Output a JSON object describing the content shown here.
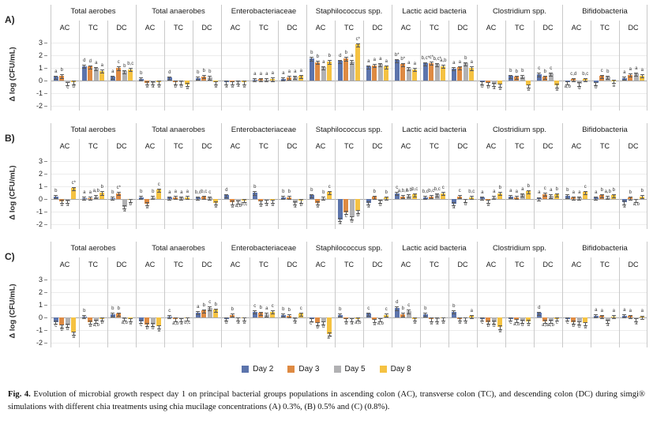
{
  "chart_data": {
    "type": "bar",
    "title": "",
    "ylabel": "Δ log (CFU/mL)",
    "yticks": [
      3,
      2,
      1,
      0,
      -1,
      -2
    ],
    "ylim": [
      -2.4,
      3.4
    ],
    "grid": true,
    "legend_position": "bottom",
    "groups": [
      "Total aerobes",
      "Total anaerobes",
      "Enterobacteriaceae",
      "Staphilococcus spp.",
      "Lactic acid bacteria",
      "Clostridium spp.",
      "Bifidobacteria"
    ],
    "regions": [
      "AC",
      "TC",
      "DC"
    ],
    "series": [
      "Day 2",
      "Day 3",
      "Day 5",
      "Day 8"
    ],
    "colors": [
      "#5C74AC",
      "#DE8A42",
      "#B1B1B3",
      "#F5C242"
    ],
    "error_bar_approx": 0.1,
    "panels": [
      {
        "label": "A)",
        "values": [
          [
            [
              0.3,
              0.38,
              -0.2,
              -0.12
            ],
            [
              1.15,
              1.1,
              0.97,
              0.78
            ],
            [
              0.3,
              1.0,
              0.72,
              0.9
            ]
          ],
          [
            [
              0.15,
              -0.18,
              -0.18,
              -0.12
            ],
            [
              0.22,
              -0.12,
              -0.12,
              -0.3
            ],
            [
              0.2,
              0.32,
              0.25,
              -0.15
            ]
          ],
          [
            [
              -0.12,
              -0.15,
              -0.1,
              -0.12
            ],
            [
              0.08,
              0.1,
              0.08,
              0.12
            ],
            [
              0.15,
              0.25,
              0.3,
              0.35
            ]
          ],
          [
            [
              1.75,
              1.45,
              1.05,
              1.5
            ],
            [
              1.55,
              1.75,
              1.5,
              2.85
            ],
            [
              1.1,
              1.2,
              1.3,
              1.1
            ]
          ],
          [
            [
              1.6,
              1.3,
              0.95,
              0.9
            ],
            [
              1.35,
              1.4,
              1.3,
              1.15
            ],
            [
              0.95,
              1.05,
              1.35,
              1.0
            ]
          ],
          [
            [
              -0.15,
              -0.2,
              -0.3,
              -0.32
            ],
            [
              0.35,
              0.3,
              0.32,
              -0.4
            ],
            [
              0.5,
              0.3,
              0.55,
              -0.38
            ]
          ],
          [
            [
              -0.15,
              0.1,
              -0.25,
              0.1
            ],
            [
              -0.2,
              0.35,
              0.3,
              -0.05
            ],
            [
              0.2,
              0.45,
              0.55,
              0.4
            ]
          ]
        ],
        "letters": [
          [
            [
              "a",
              "b",
              "c",
              "d"
            ],
            [
              "d",
              "d",
              "a",
              "a"
            ],
            [
              "a",
              "c",
              "b",
              "b,c"
            ]
          ],
          [
            [
              "b",
              "a",
              "a",
              "a"
            ],
            [
              "d",
              "b",
              "b",
              "a"
            ],
            [
              "b",
              "b",
              "b",
              "a"
            ]
          ],
          [
            [
              "a",
              "a",
              "a",
              "a"
            ],
            [
              "a",
              "a",
              "a",
              "a"
            ],
            [
              "a",
              "a",
              "a",
              "a"
            ]
          ],
          [
            [
              "b",
              "b",
              "a",
              "b"
            ],
            [
              "d",
              "b",
              "a",
              "c*"
            ],
            [
              "a",
              "a",
              "a",
              "a"
            ]
          ],
          [
            [
              "b*",
              "b*",
              "a",
              "a"
            ],
            [
              "b,c*",
              "c*",
              "b,c*",
              "a,b"
            ],
            [
              "a",
              "a",
              "b",
              "a"
            ]
          ],
          [
            [
              "b",
              "b",
              "a",
              "a"
            ],
            [
              "b",
              "b",
              "b",
              "a"
            ],
            [
              "c",
              "b",
              "c",
              "a"
            ]
          ],
          [
            [
              "a,b",
              "c,d",
              "d",
              "b,c"
            ],
            [
              "b",
              "c",
              "b",
              "a"
            ],
            [
              "a",
              "a",
              "a",
              "a"
            ]
          ]
        ]
      },
      {
        "label": "B)",
        "values": [
          [
            [
              0.2,
              -0.18,
              -0.18,
              0.85
            ],
            [
              0.07,
              0.07,
              0.2,
              0.5
            ],
            [
              0.07,
              0.45,
              -0.6,
              -0.07
            ]
          ],
          [
            [
              0.15,
              -0.35,
              0.15,
              0.72
            ],
            [
              0.1,
              0.15,
              0.1,
              0.15
            ],
            [
              0.1,
              0.18,
              0.1,
              -0.3
            ]
          ],
          [
            [
              0.3,
              -0.25,
              -0.2,
              -0.1
            ],
            [
              0.5,
              -0.2,
              -0.15,
              -0.15
            ],
            [
              0.15,
              0.15,
              -0.3,
              -0.12
            ]
          ],
          [
            [
              0.3,
              -0.3,
              0.07,
              0.55
            ],
            [
              -1.6,
              -1.05,
              -1.45,
              -0.95
            ],
            [
              -0.3,
              0.18,
              -0.18,
              0.1
            ]
          ],
          [
            [
              0.45,
              0.2,
              0.28,
              0.35
            ],
            [
              0.15,
              0.2,
              0.35,
              0.45
            ],
            [
              -0.35,
              0.2,
              -0.07,
              0.15
            ]
          ],
          [
            [
              0.1,
              -0.15,
              0.15,
              0.45
            ],
            [
              0.2,
              0.15,
              0.35,
              0.6
            ],
            [
              0.05,
              0.4,
              0.25,
              0.35
            ]
          ],
          [
            [
              0.25,
              0.1,
              0.1,
              0.55
            ],
            [
              0.1,
              0.3,
              0.15,
              0.3
            ],
            [
              -0.25,
              0.1,
              -0.07,
              0.2
            ]
          ]
        ],
        "letters": [
          [
            [
              "b",
              "a",
              "a",
              "c*"
            ],
            [
              "a",
              "a",
              "a,b",
              "b"
            ],
            [
              "b",
              "c*",
              "a",
              "b"
            ]
          ],
          [
            [
              "b",
              "a",
              "b",
              "c"
            ],
            [
              "a",
              "a",
              "a",
              "a"
            ],
            [
              "b,c",
              "b,c",
              "c",
              "a"
            ]
          ],
          [
            [
              "d",
              "a",
              "a,b",
              "b,c"
            ],
            [
              "b",
              "a",
              "a",
              "a"
            ],
            [
              "b",
              "b",
              "a",
              "b"
            ]
          ],
          [
            [
              "b",
              "a",
              "b",
              "c"
            ],
            [
              "a",
              "c",
              "b",
              "d"
            ],
            [
              "a",
              "b",
              "b",
              "b"
            ]
          ],
          [
            [
              "c",
              "a,b,c",
              "a,b",
              "b,c"
            ],
            [
              "b,c",
              "b,c",
              "b,c",
              "c"
            ],
            [
              "a",
              "c",
              "b",
              "b,c"
            ]
          ],
          [
            [
              "a",
              "a",
              "a",
              "b"
            ],
            [
              "a",
              "a",
              "a",
              "b"
            ],
            [
              "a",
              "c",
              "a",
              "b"
            ]
          ],
          [
            [
              "b",
              "a",
              "a",
              "c"
            ],
            [
              "a",
              "b",
              "a,b",
              "b"
            ],
            [
              "a",
              "b",
              "a,b",
              "b"
            ]
          ]
        ]
      },
      {
        "label": "C)",
        "values": [
          [
            [
              -0.35,
              -0.65,
              -0.6,
              -1.2
            ],
            [
              0.07,
              -0.35,
              -0.3,
              -0.1
            ],
            [
              0.25,
              0.3,
              -0.1,
              -0.15
            ]
          ],
          [
            [
              -0.3,
              -0.55,
              -0.55,
              -0.7
            ],
            [
              0.07,
              -0.12,
              -0.15,
              -0.07
            ],
            [
              0.4,
              0.55,
              0.75,
              0.6
            ]
          ],
          [
            [
              -0.1,
              0.2,
              -0.07,
              -0.07
            ],
            [
              0.45,
              0.35,
              0.25,
              0.45
            ],
            [
              0.2,
              0.15,
              -0.1,
              0.3
            ]
          ],
          [
            [
              -0.15,
              -0.45,
              -0.4,
              -1.3
            ],
            [
              0.2,
              -0.15,
              -0.15,
              -0.1
            ],
            [
              0.3,
              -0.2,
              -0.15,
              0.2
            ]
          ],
          [
            [
              0.75,
              0.25,
              0.5,
              -0.1
            ],
            [
              0.25,
              -0.12,
              -0.12,
              -0.07
            ],
            [
              0.45,
              -0.1,
              -0.07,
              0.1
            ]
          ],
          [
            [
              -0.1,
              -0.35,
              -0.35,
              -0.75
            ],
            [
              -0.1,
              -0.2,
              -0.3,
              -0.3
            ],
            [
              0.35,
              -0.3,
              -0.3,
              -0.1
            ]
          ],
          [
            [
              -0.1,
              -0.35,
              -0.4,
              -0.45
            ],
            [
              0.15,
              0.1,
              -0.3,
              0.07
            ],
            [
              0.15,
              0.1,
              -0.15,
              0.05
            ]
          ]
        ],
        "letters": [
          [
            [
              "c",
              "b",
              "b",
              "a"
            ],
            [
              "b",
              "a",
              "a,b",
              "b"
            ],
            [
              "b",
              "b",
              "a,b",
              "a"
            ]
          ],
          [
            [
              "c",
              "b",
              "b",
              "a"
            ],
            [
              "c",
              "a,b",
              "a",
              "b,c"
            ],
            [
              "a",
              "b",
              "c",
              "b"
            ]
          ],
          [
            [
              "b",
              "b",
              "a",
              "a"
            ],
            [
              "c",
              "b",
              "a",
              "c"
            ],
            [
              "b",
              "b",
              "a",
              "c"
            ]
          ],
          [
            [
              "c*",
              "b",
              "b",
              "a*"
            ],
            [
              "b",
              "a",
              "a",
              "a,b"
            ],
            [
              "c",
              "a",
              "a,b",
              "c"
            ]
          ],
          [
            [
              "d",
              "b",
              "c",
              "a"
            ],
            [
              "b",
              "a",
              "a",
              "a"
            ],
            [
              "b",
              "a",
              "a",
              "a"
            ]
          ],
          [
            [
              "c",
              "b",
              "b",
              "a"
            ],
            [
              "c",
              "a,b",
              "b",
              "a"
            ],
            [
              "d",
              "a,b",
              "a,b",
              "c"
            ]
          ],
          [
            [
              "c",
              "b",
              "b",
              "a"
            ],
            [
              "a",
              "a",
              "a",
              "a"
            ],
            [
              "a",
              "a",
              "a",
              "a"
            ]
          ]
        ]
      }
    ]
  },
  "legend": {
    "items": [
      {
        "label": "Day 2",
        "color": "#5C74AC"
      },
      {
        "label": "Day 3",
        "color": "#DE8A42"
      },
      {
        "label": "Day 5",
        "color": "#B1B1B3"
      },
      {
        "label": "Day 8",
        "color": "#F5C242"
      }
    ]
  },
  "caption": {
    "prefix": "Fig. 4.",
    "text": " Evolution of microbial growth respect day 1 on principal bacterial groups populations in ascending colon (AC), transverse colon (TC), and descending colon (DC) during simgi® simulations with different chia treatments using chia mucilage concentrations (A) 0.3%, (B) 0.5% and (C) (0.8%)."
  }
}
